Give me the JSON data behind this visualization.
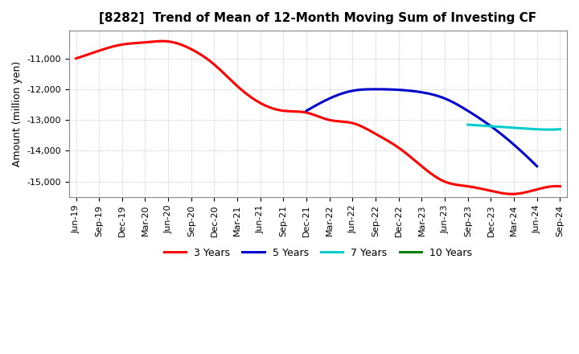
{
  "title": "[8282]  Trend of Mean of 12-Month Moving Sum of Investing CF",
  "ylabel": "Amount (million yen)",
  "background_color": "#ffffff",
  "plot_bg_color": "#ffffff",
  "grid_color": "#aaaaaa",
  "title_fontsize": 11,
  "label_fontsize": 9,
  "tick_fontsize": 8,
  "x_labels": [
    "Jun-19",
    "Sep-19",
    "Dec-19",
    "Mar-20",
    "Jun-20",
    "Sep-20",
    "Dec-20",
    "Mar-21",
    "Jun-21",
    "Sep-21",
    "Dec-21",
    "Mar-22",
    "Jun-22",
    "Sep-22",
    "Dec-22",
    "Mar-23",
    "Jun-23",
    "Sep-23",
    "Dec-23",
    "Mar-24",
    "Jun-24",
    "Sep-24"
  ],
  "series_3y": {
    "color": "#ff0000",
    "label": "3 Years",
    "x_indices": [
      0,
      1,
      2,
      3,
      4,
      5,
      6,
      7,
      8,
      9,
      10,
      11,
      12,
      13,
      14,
      15,
      16,
      17,
      18,
      19,
      20,
      21
    ],
    "y_values": [
      -11000,
      -10750,
      -10550,
      -10480,
      -10450,
      -10700,
      -11200,
      -11900,
      -12450,
      -12700,
      -12760,
      -13000,
      -13100,
      -13450,
      -13900,
      -14500,
      -15000,
      -15150,
      -15300,
      -15400,
      -15250,
      -15150
    ]
  },
  "series_5y": {
    "color": "#0000cc",
    "label": "5 Years",
    "x_indices": [
      10,
      11,
      12,
      13,
      14,
      15,
      16,
      17,
      18,
      19,
      20
    ],
    "y_values": [
      -12700,
      -12300,
      -12050,
      -12000,
      -12020,
      -12100,
      -12300,
      -12700,
      -13200,
      -13800,
      -14500
    ]
  },
  "series_7y": {
    "color": "#00cccc",
    "label": "7 Years",
    "x_indices": [
      17,
      18,
      19,
      20,
      21
    ],
    "y_values": [
      -13150,
      -13200,
      -13250,
      -13300,
      -13300
    ]
  },
  "series_10y": {
    "color": "#008000",
    "label": "10 Years",
    "x_indices": [],
    "y_values": []
  },
  "ylim": [
    -15500,
    -10100
  ],
  "yticks": [
    -15000,
    -14000,
    -13000,
    -12000,
    -11000
  ],
  "ytick_labels": [
    "-15,000",
    "-14,000",
    "-13,000",
    "-12,000",
    "-11,000"
  ],
  "linewidth": 2.2
}
